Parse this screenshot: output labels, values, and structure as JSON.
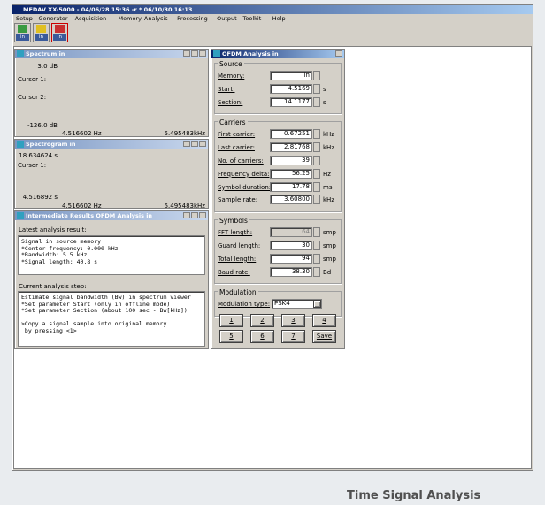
{
  "window": {
    "title": "MEDAV XX-5000 - 04/06/28 15:36 -r * 06/10/30 16:13",
    "menu": [
      "Setup",
      "Generator",
      "Acquisition",
      "Memory",
      "Analysis",
      "Processing",
      "Output",
      "Toolkit",
      "Help"
    ],
    "toolbar": [
      "in",
      "in",
      "in"
    ]
  },
  "spectrum": {
    "title": "Spectrum in",
    "y_top": "3.0 dB",
    "cursor1": "Cursor 1:",
    "cursor2": "Cursor 2:",
    "y_bottom": "-126.0 dB",
    "x_left": "4.516602 Hz",
    "x_right": "5.495483kHz"
  },
  "spectrogram": {
    "title": "Spectrogram in",
    "y_top": "18.634624 s",
    "cursor1": "Cursor 1:",
    "y_bottom": "4.516892 s",
    "x_left": "4.516602 Hz",
    "x_right": "5.495483kHz"
  },
  "results": {
    "title": "Intermediate Results OFDM Analysis in",
    "latest_label": "Latest analysis result:",
    "latest_lines": [
      "Signal in source memory",
      "*Center frequency: 0.000 kHz",
      "*Bandwidth: 5.5 kHz",
      "*Signal length: 40.8 s"
    ],
    "current_label": "Current analysis step:",
    "current_lines": [
      "Estimate signal bandwidth (Bw) in spectrum viewer",
      "*Set parameter Start (only in offline mode)",
      "*Set parameter Section (about 100 sec - Bw[kHz])",
      "",
      ">Copy a signal sample into original memory",
      " by pressing <1>"
    ]
  },
  "ofdm": {
    "title": "OFDM Analysis in",
    "groups": [
      {
        "name": "Source",
        "fields": [
          {
            "label": "Memory:",
            "value": "in"
          },
          {
            "label": "Start:",
            "value": "4.5169",
            "unit": "s"
          },
          {
            "label": "Section:",
            "value": "14.1177",
            "unit": "s"
          }
        ]
      },
      {
        "name": "Carriers",
        "fields": [
          {
            "label": "First carrier:",
            "value": "0.67251",
            "unit": "kHz"
          },
          {
            "label": "Last carrier:",
            "value": "2.81768",
            "unit": "kHz"
          },
          {
            "label": "No. of carriers:",
            "value": "39"
          },
          {
            "label": "Frequency delta:",
            "value": "56.25",
            "unit": "Hz"
          },
          {
            "label": "Symbol duration:",
            "value": "17.78",
            "unit": "ms"
          },
          {
            "label": "Sample rate:",
            "value": "3.60800",
            "unit": "kHz"
          }
        ]
      },
      {
        "name": "Symbols",
        "fields": [
          {
            "label": "FFT length:",
            "value": "64",
            "unit": "smp"
          },
          {
            "label": "Guard length:",
            "value": "30",
            "unit": "smp"
          },
          {
            "label": "Total length:",
            "value": "94",
            "unit": "smp"
          },
          {
            "label": "Baud rate:",
            "value": "38.30",
            "unit": "Bd"
          }
        ]
      },
      {
        "name": "Modulation",
        "fields": [
          {
            "label": "Modulation type:",
            "value": "PSK4"
          }
        ]
      }
    ],
    "buttons": [
      "1",
      "2",
      "3",
      "4",
      "5",
      "6",
      "7",
      "Save"
    ]
  },
  "caption": "Time Signal Analysis"
}
